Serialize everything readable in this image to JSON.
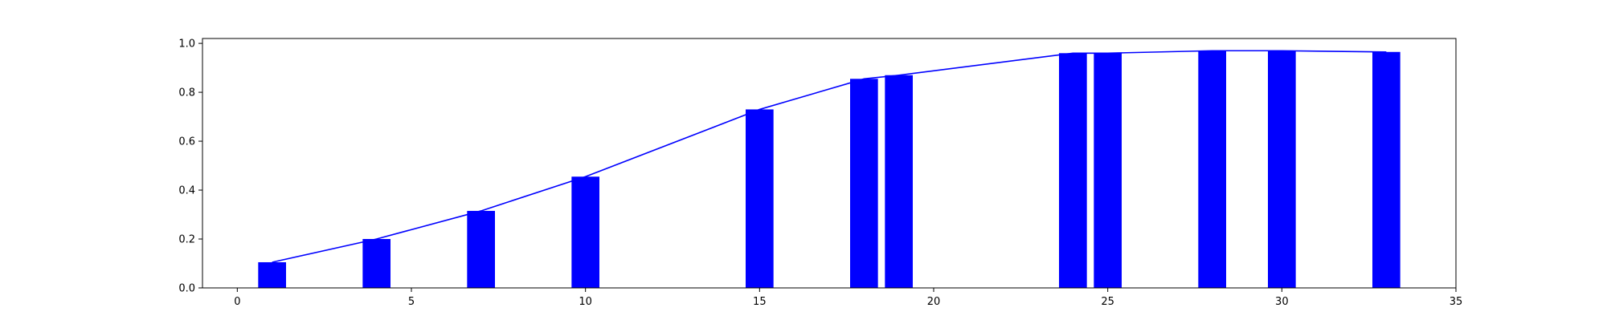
{
  "chart_data": {
    "type": "bar",
    "x": [
      1,
      4,
      7,
      10,
      15,
      18,
      19,
      24,
      25,
      28,
      30,
      33
    ],
    "values": [
      0.105,
      0.2,
      0.315,
      0.455,
      0.73,
      0.855,
      0.87,
      0.96,
      0.96,
      0.97,
      0.97,
      0.965
    ],
    "line": {
      "x": [
        1,
        4,
        7,
        10,
        15,
        18,
        19,
        24,
        25,
        28,
        30,
        33
      ],
      "y": [
        0.105,
        0.2,
        0.315,
        0.455,
        0.73,
        0.855,
        0.87,
        0.96,
        0.96,
        0.97,
        0.97,
        0.965
      ]
    },
    "bar_width": 0.8,
    "xlim": [
      -1,
      35
    ],
    "ylim": [
      0.0,
      1.02
    ],
    "xticks": [
      0,
      5,
      10,
      15,
      20,
      25,
      30,
      35
    ],
    "yticks": [
      0.0,
      0.2,
      0.4,
      0.6,
      0.8,
      1.0
    ],
    "xtick_labels": [
      "0",
      "5",
      "10",
      "15",
      "20",
      "25",
      "30",
      "35"
    ],
    "ytick_labels": [
      "0.0",
      "0.2",
      "0.4",
      "0.6",
      "0.8",
      "1.0"
    ],
    "title": "",
    "xlabel": "",
    "ylabel": "",
    "grid": false,
    "bar_color": "#0000ff",
    "line_color": "#0000ff"
  }
}
